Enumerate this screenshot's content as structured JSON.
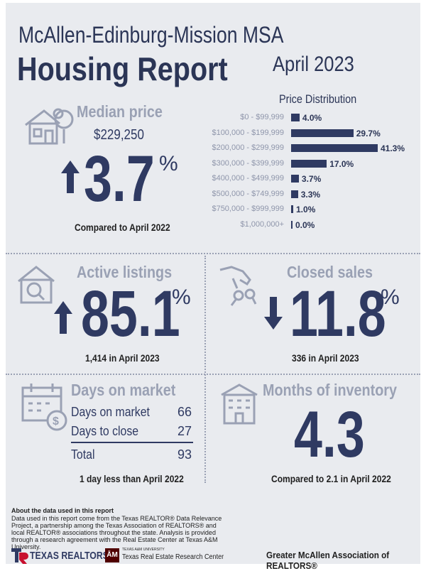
{
  "header": {
    "region": "McAllen-Edinburg-Mission MSA",
    "title": "Housing Report",
    "month": "April 2023"
  },
  "median_price": {
    "heading": "Median price",
    "value": "$229,250",
    "change": "3.7",
    "pct_sign": "%",
    "direction": "up",
    "compare": "Compared to April 2022",
    "icon": "house-tree-icon"
  },
  "price_distribution": {
    "title": "Price Distribution",
    "rows": [
      {
        "range": "$0 - $99,999",
        "value": "4.0%",
        "pct": 4.0
      },
      {
        "range": "$100,000 - $199,999",
        "value": "29.7%",
        "pct": 29.7
      },
      {
        "range": "$200,000 - $299,999",
        "value": "41.3%",
        "pct": 41.3
      },
      {
        "range": "$300,000 - $399,999",
        "value": "17.0%",
        "pct": 17.0
      },
      {
        "range": "$400,000 - $499,999",
        "value": "3.7%",
        "pct": 3.7
      },
      {
        "range": "$500,000 - $749,999",
        "value": "3.3%",
        "pct": 3.3
      },
      {
        "range": "$750,000 - $999,999",
        "value": "1.0%",
        "pct": 1.0
      },
      {
        "range": "$1,000,000+",
        "value": "0.0%",
        "pct": 0.0
      }
    ]
  },
  "active_listings": {
    "heading": "Active listings",
    "change": "85.1",
    "pct_sign": "%",
    "direction": "up",
    "detail": "1,414 in April 2023",
    "icon": "house-magnifier-icon"
  },
  "closed_sales": {
    "heading": "Closed sales",
    "change": "11.8",
    "pct_sign": "%",
    "direction": "down",
    "detail": "336 in April 2023",
    "icon": "hand-keys-icon"
  },
  "days_on_market": {
    "heading": "Days on market",
    "rows": [
      {
        "label": "Days on market",
        "value": "66"
      },
      {
        "label": "Days to close",
        "value": "27"
      }
    ],
    "total_label": "Total",
    "total_value": "93",
    "compare": "1 day less than April 2022",
    "icon": "calendar-dollar-icon"
  },
  "months_inventory": {
    "heading": "Months of inventory",
    "value": "4.3",
    "compare": "Compared to 2.1 in April 2022",
    "icon": "building-icon"
  },
  "about": {
    "heading": "About the data used in this report",
    "text": "Data used in this report come from the Texas REALTOR® Data Relevance Project, a partnership among the Texas Association of REALTORS® and local REALTOR® associations throughout the state. Analysis is provided through a research agreement with the Real Estate Center at Texas A&M University."
  },
  "footer": {
    "texas_realtors": "TEXAS REALTORS",
    "tamu_small": "TEXAS A&M UNIVERSITY",
    "research_center": "Texas Real Estate Research Center",
    "association": "Greater McAllen Association of REALTORS®"
  },
  "colors": {
    "navy": "#2f3a62",
    "gray_heading": "#9aa1b4",
    "background": "#e9ebef",
    "brand_red": "#c8102e",
    "tamu_maroon": "#500000"
  }
}
